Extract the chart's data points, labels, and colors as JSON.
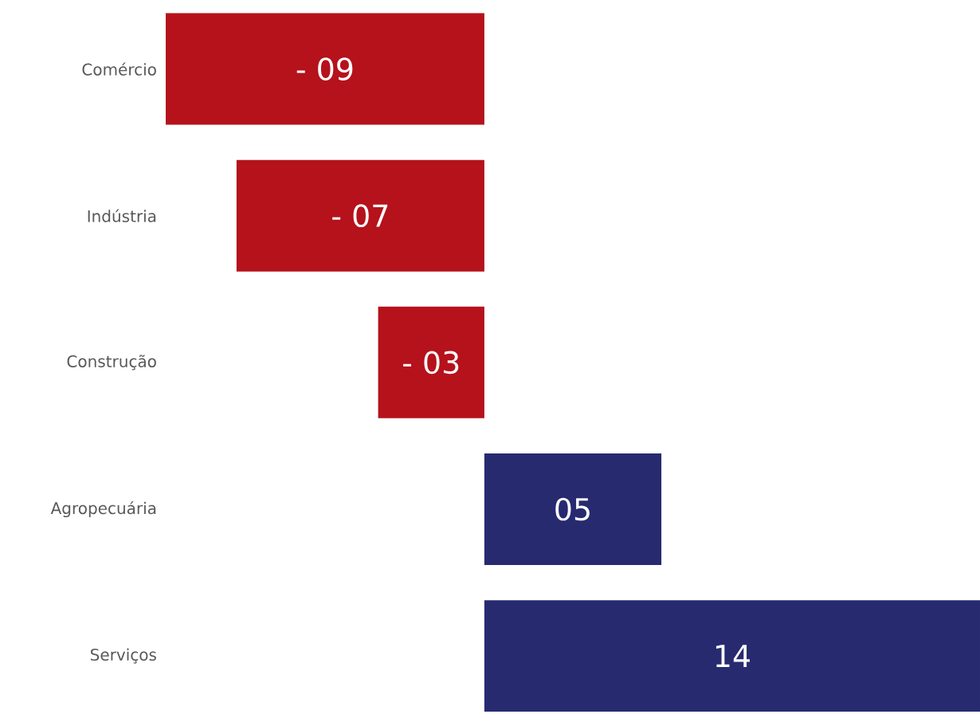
{
  "chart_data": {
    "type": "bar",
    "orientation": "horizontal",
    "categories": [
      "Comércio",
      "Indústria",
      "Construção",
      "Agropecuária",
      "Serviços"
    ],
    "values": [
      -9,
      -7,
      -3,
      5,
      14
    ],
    "colors": [
      "#b5121b",
      "#b5121b",
      "#b5121b",
      "#272a6f",
      "#272a6f"
    ],
    "value_labels": [
      "- 09",
      "- 07",
      "- 03",
      "05",
      "14"
    ],
    "tick_labels": "y"
  }
}
